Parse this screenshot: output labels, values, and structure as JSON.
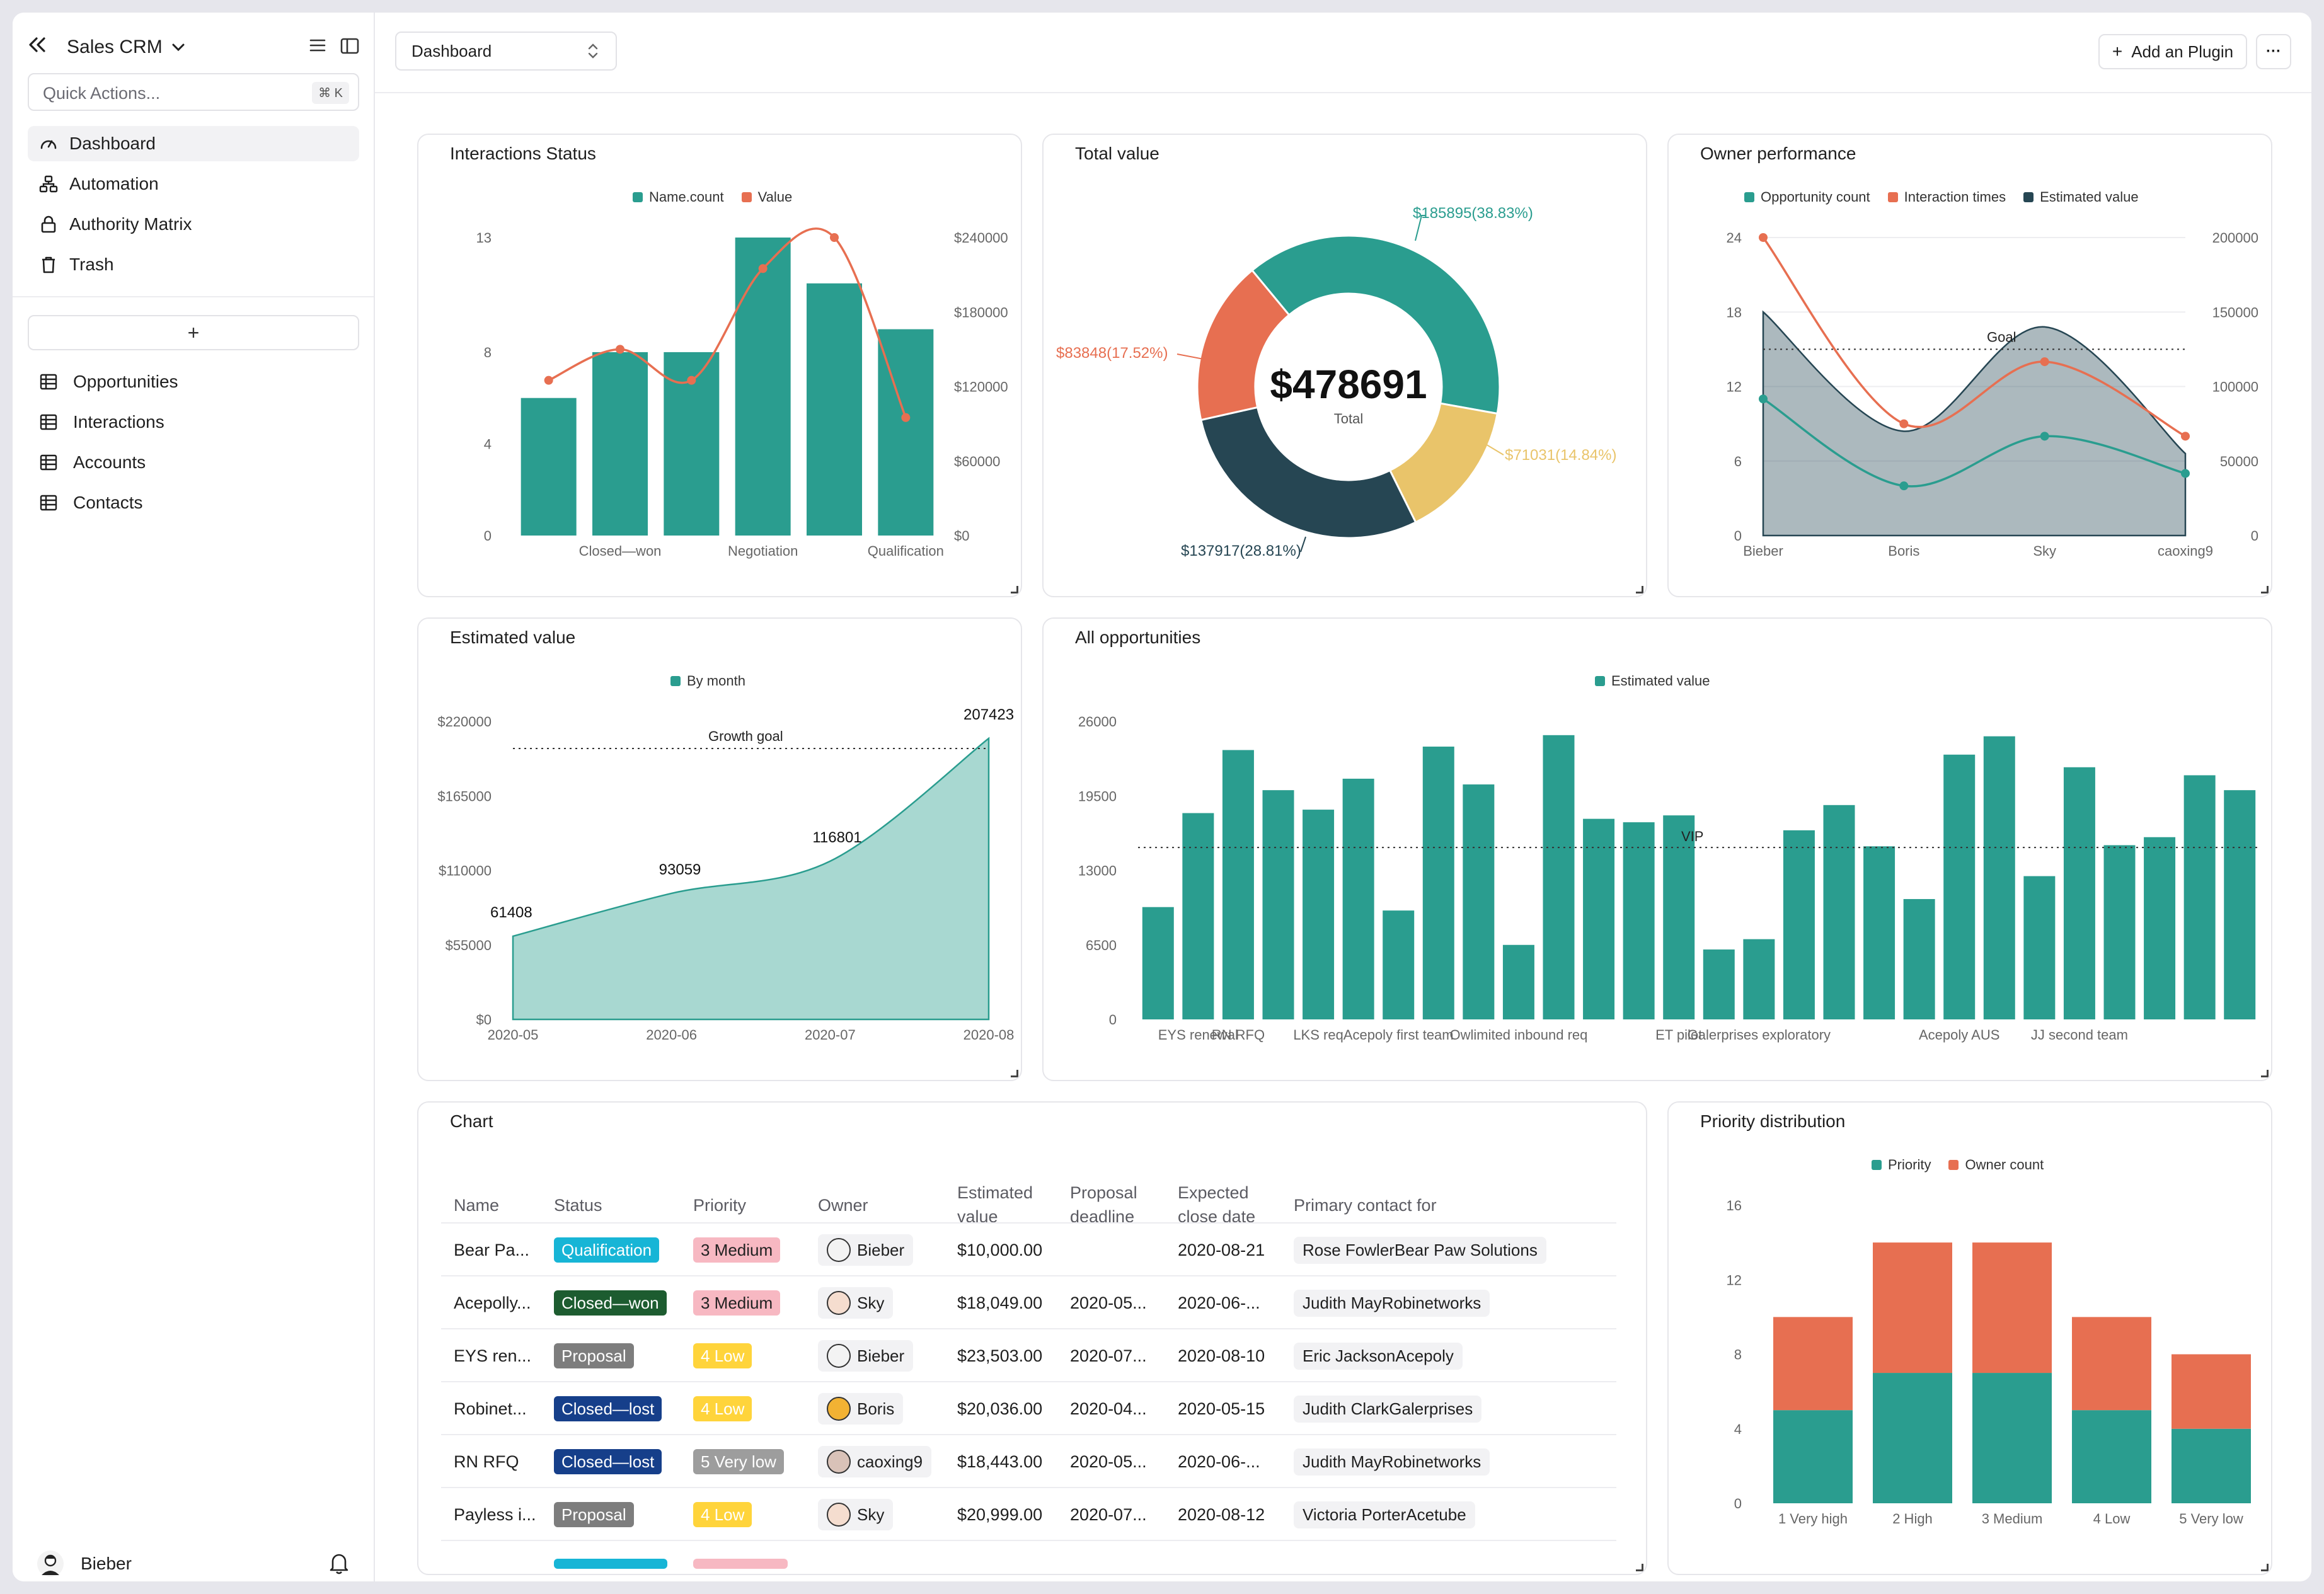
{
  "app": {
    "title": "Sales CRM",
    "quick_actions_placeholder": "Quick Actions...",
    "quick_actions_shortcut": "⌘ K",
    "nav": [
      {
        "label": "Dashboard",
        "icon": "gauge-icon",
        "active": true
      },
      {
        "label": "Automation",
        "icon": "workflow-icon"
      },
      {
        "label": "Authority Matrix",
        "icon": "lock-icon"
      },
      {
        "label": "Trash",
        "icon": "trash-icon"
      }
    ],
    "add_label": "+",
    "tables": [
      "Opportunities",
      "Interactions",
      "Accounts",
      "Contacts"
    ],
    "user": "Bieber"
  },
  "topbar": {
    "view_select": "Dashboard",
    "add_plugin": "Add an Plugin",
    "more": "···"
  },
  "interactions_status": {
    "title": "Interactions Status",
    "legend": [
      "Name.count",
      "Value"
    ],
    "colors": {
      "bar": "#2a9d8f",
      "line": "#e76f51"
    }
  },
  "total_value": {
    "title": "Total value",
    "center_value": "$478691",
    "center_label": "Total",
    "label_top": "$185895(38.83%)",
    "label_right": "$71031(14.84%)",
    "label_bottom": "$137917(28.81%)",
    "label_left": "$83848(17.52%)"
  },
  "owner_performance": {
    "title": "Owner performance",
    "legend": [
      "Opportunity count",
      "Interaction times",
      "Estimated value"
    ],
    "goal_label": "Goal"
  },
  "estimated_value": {
    "title": "Estimated value",
    "legend": [
      "By month"
    ],
    "goal_label": "Growth goal"
  },
  "all_opportunities": {
    "title": "All opportunities",
    "legend": [
      "Estimated value"
    ],
    "vip_label": "VIP"
  },
  "table": {
    "title": "Chart",
    "headers": {
      "name": "Name",
      "status": "Status",
      "priority": "Priority",
      "owner": "Owner",
      "est1": "Estimated",
      "est2": "value",
      "pd1": "Proposal",
      "pd2": "deadline",
      "ec1": "Expected",
      "ec2": "close date",
      "pc": "Primary contact for"
    },
    "rows": [
      {
        "name": "Bear Pa...",
        "status": "Qualification",
        "priority": "3 Medium",
        "owner": "Bieber",
        "value": "$10,000.00",
        "deadline": "",
        "close": "2020-08-21",
        "contact": "Rose FowlerBear Paw Solutions"
      },
      {
        "name": "Acepolly...",
        "status": "Closed—won",
        "priority": "3 Medium",
        "owner": "Sky",
        "value": "$18,049.00",
        "deadline": "2020-05...",
        "close": "2020-06-...",
        "contact": "Judith MayRobinetworks"
      },
      {
        "name": "EYS ren...",
        "status": "Proposal",
        "priority": "4 Low",
        "owner": "Bieber",
        "value": "$23,503.00",
        "deadline": "2020-07...",
        "close": "2020-08-10",
        "contact": "Eric JacksonAcepoly"
      },
      {
        "name": "Robinet...",
        "status": "Closed—lost",
        "priority": "4 Low",
        "owner": "Boris",
        "value": "$20,036.00",
        "deadline": "2020-04...",
        "close": "2020-05-15",
        "contact": "Judith ClarkGalerprises"
      },
      {
        "name": "RN RFQ",
        "status": "Closed—lost",
        "priority": "5 Very low",
        "owner": "caoxing9",
        "value": "$18,443.00",
        "deadline": "2020-05...",
        "close": "2020-06-...",
        "contact": "Judith MayRobinetworks"
      },
      {
        "name": "Payless i...",
        "status": "Proposal",
        "priority": "4 Low",
        "owner": "Sky",
        "value": "$20,999.00",
        "deadline": "2020-07...",
        "close": "2020-08-12",
        "contact": "Victoria PorterAcetube"
      }
    ]
  },
  "priority_distribution": {
    "title": "Priority distribution",
    "legend": [
      "Priority",
      "Owner count"
    ]
  },
  "chart_data": [
    {
      "type": "bar",
      "title": "Interactions Status",
      "categories": [
        "",
        "Closed—won",
        "",
        "Negotiation",
        "",
        "Qualification"
      ],
      "series": [
        {
          "name": "Name.count",
          "values": [
            6,
            8,
            8,
            13,
            11,
            9
          ],
          "axis": "left"
        },
        {
          "name": "Value",
          "type": "line",
          "values": [
            125000,
            150000,
            125000,
            215000,
            240000,
            95000
          ],
          "axis": "right"
        }
      ],
      "ylim": [
        0,
        13
      ],
      "yticks": [
        0,
        4,
        8,
        13
      ],
      "y2lim": [
        0,
        240000
      ],
      "y2ticks": [
        "$0",
        "$60000",
        "$120000",
        "$180000",
        "$240000"
      ]
    },
    {
      "type": "pie",
      "title": "Total value",
      "slices": [
        {
          "value": 185895,
          "percent": 38.83,
          "color": "#2a9d8f"
        },
        {
          "value": 71031,
          "percent": 14.84,
          "color": "#e9c46a"
        },
        {
          "value": 137917,
          "percent": 28.81,
          "color": "#264653"
        },
        {
          "value": 83848,
          "percent": 17.52,
          "color": "#e76f51"
        }
      ],
      "total": 478691
    },
    {
      "type": "line",
      "title": "Owner performance",
      "categories": [
        "Bieber",
        "Boris",
        "Sky",
        "caoxing9"
      ],
      "series": [
        {
          "name": "Opportunity count",
          "values": [
            11,
            4,
            8,
            5
          ],
          "axis": "left",
          "color": "#2a9d8f"
        },
        {
          "name": "Interaction times",
          "values": [
            24,
            9,
            14,
            8
          ],
          "axis": "left",
          "color": "#e76f51"
        },
        {
          "name": "Estimated value",
          "type": "area",
          "values": [
            150000,
            70000,
            140000,
            55000
          ],
          "axis": "right",
          "color": "#264653"
        }
      ],
      "ylim": [
        0,
        24
      ],
      "yticks": [
        0,
        6,
        12,
        18,
        24
      ],
      "y2lim": [
        0,
        200000
      ],
      "y2ticks": [
        0,
        50000,
        100000,
        150000,
        200000
      ],
      "goal": 15
    },
    {
      "type": "area",
      "title": "Estimated value",
      "categories": [
        "2020-05",
        "2020-06",
        "2020-07",
        "2020-08"
      ],
      "series": [
        {
          "name": "By month",
          "values": [
            61408,
            93059,
            116801,
            207423
          ]
        }
      ],
      "ylim": [
        0,
        220000
      ],
      "yticks": [
        "$0",
        "$55000",
        "$110000",
        "$165000",
        "$220000"
      ],
      "goal": 200000
    },
    {
      "type": "bar",
      "title": "All opportunities",
      "categories": [
        "",
        "EYS renewal",
        "RN RFQ",
        "",
        "LKS req",
        "",
        "Acepoly first team",
        "",
        "",
        "Owlimited inbound req",
        "",
        "",
        "",
        "ET pilot",
        "",
        "Galerprises exploratory",
        "",
        "",
        "",
        "",
        "Acepoly AUS",
        "",
        "",
        "JJ second team",
        "",
        "",
        "",
        ""
      ],
      "series": [
        {
          "name": "Estimated value",
          "values": [
            9800,
            18000,
            23500,
            20000,
            18300,
            21000,
            9500,
            23800,
            20500,
            6500,
            24800,
            17500,
            17200,
            17800,
            6100,
            7000,
            16500,
            18700,
            15100,
            10500,
            23100,
            24700,
            12500,
            22000,
            15200,
            15900,
            21300,
            20000
          ]
        }
      ],
      "ylim": [
        0,
        26000
      ],
      "yticks": [
        0,
        6500,
        13000,
        19500,
        26000
      ],
      "vip": 15000
    },
    {
      "type": "bar",
      "title": "Priority distribution",
      "stacked": true,
      "categories": [
        "1 Very high",
        "2 High",
        "3 Medium",
        "4 Low",
        "5 Very low"
      ],
      "series": [
        {
          "name": "Priority",
          "values": [
            5,
            7,
            7,
            5,
            4
          ],
          "color": "#2a9d8f"
        },
        {
          "name": "Owner count",
          "values": [
            5,
            7,
            7,
            5,
            4
          ],
          "color": "#e76f51"
        }
      ],
      "ylim": [
        0,
        16
      ],
      "yticks": [
        0,
        4,
        8,
        12,
        16
      ]
    }
  ]
}
